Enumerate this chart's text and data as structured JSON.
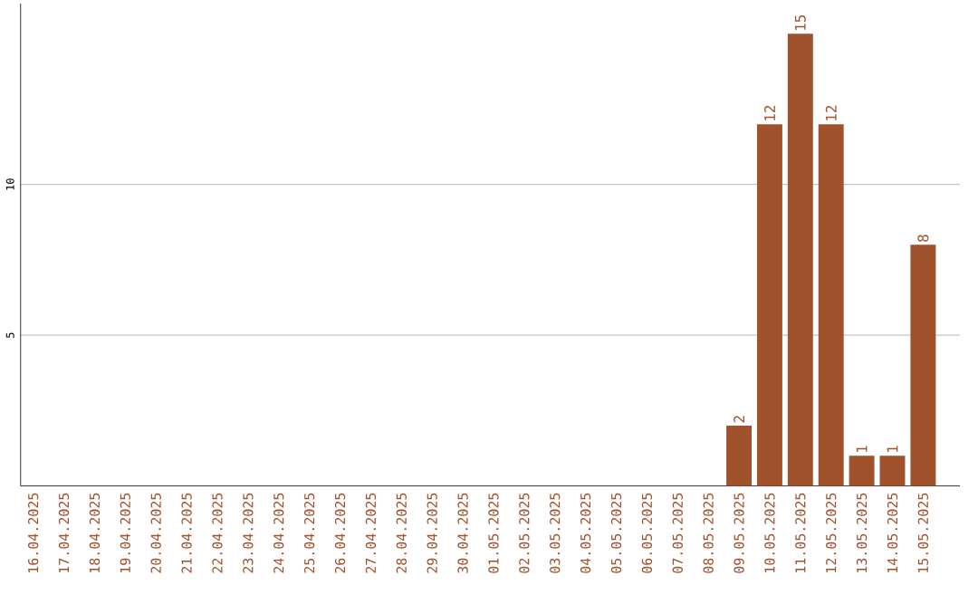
{
  "chart_data": {
    "type": "bar",
    "categories": [
      "16.04.2025",
      "17.04.2025",
      "18.04.2025",
      "19.04.2025",
      "20.04.2025",
      "21.04.2025",
      "22.04.2025",
      "23.04.2025",
      "24.04.2025",
      "25.04.2025",
      "26.04.2025",
      "27.04.2025",
      "28.04.2025",
      "29.04.2025",
      "30.04.2025",
      "01.05.2025",
      "02.05.2025",
      "03.05.2025",
      "04.05.2025",
      "05.05.2025",
      "06.05.2025",
      "07.05.2025",
      "08.05.2025",
      "09.05.2025",
      "10.05.2025",
      "11.05.2025",
      "12.05.2025",
      "13.05.2025",
      "14.05.2025",
      "15.05.2025"
    ],
    "values": [
      0,
      0,
      0,
      0,
      0,
      0,
      0,
      0,
      0,
      0,
      0,
      0,
      0,
      0,
      0,
      0,
      0,
      0,
      0,
      0,
      0,
      0,
      0,
      2,
      12,
      15,
      12,
      1,
      1,
      8
    ],
    "value_labels": [
      null,
      null,
      null,
      null,
      null,
      null,
      null,
      null,
      null,
      null,
      null,
      null,
      null,
      null,
      null,
      null,
      null,
      null,
      null,
      null,
      null,
      null,
      null,
      "2",
      "12",
      "15",
      "12",
      "1",
      "1",
      "8"
    ],
    "color": "#a0522d",
    "ylim": [
      0,
      16
    ],
    "yticks": [
      5,
      10
    ],
    "grid": "y"
  }
}
